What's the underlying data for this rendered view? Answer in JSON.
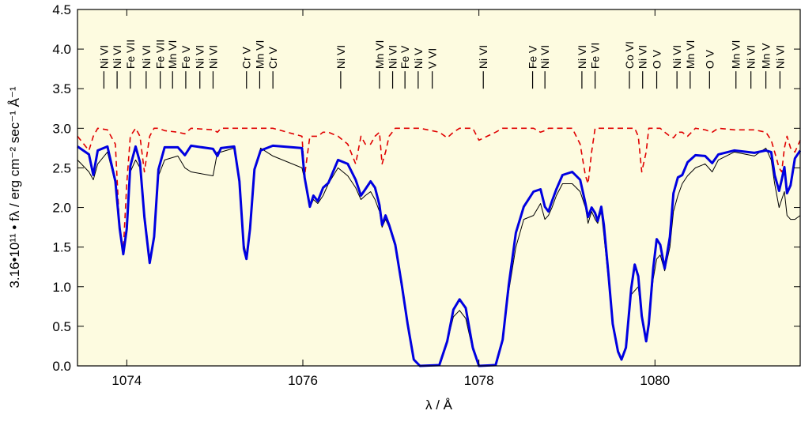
{
  "chart_data": {
    "type": "line",
    "x_label": "λ / Å",
    "y_label": "3.16•10¹¹ • fλ / erg cm⁻² sec⁻¹ Å⁻¹",
    "xlim": [
      1073.44,
      1081.65
    ],
    "ylim": [
      0,
      4.5
    ],
    "xticks": [
      1074,
      1076,
      1078,
      1080
    ],
    "yticks": [
      {
        "value": 0,
        "label": "0.0"
      },
      0.5,
      {
        "value": 1,
        "label": "1.0"
      },
      1.5,
      {
        "value": 2,
        "label": "2.0"
      },
      2.5,
      {
        "value": 3,
        "label": "3.0"
      },
      3.5,
      {
        "value": 4,
        "label": "4.0"
      },
      4.5
    ],
    "x": [
      1073.44,
      1073.57,
      1073.62,
      1073.67,
      1073.78,
      1073.87,
      1073.92,
      1073.96,
      1074.0,
      1074.04,
      1074.1,
      1074.15,
      1074.2,
      1074.26,
      1074.31,
      1074.36,
      1074.43,
      1074.58,
      1074.66,
      1074.73,
      1074.98,
      1075.03,
      1075.07,
      1075.22,
      1075.28,
      1075.33,
      1075.36,
      1075.4,
      1075.45,
      1075.52,
      1075.66,
      1075.99,
      1076.02,
      1076.08,
      1076.12,
      1076.17,
      1076.23,
      1076.29,
      1076.4,
      1076.51,
      1076.6,
      1076.66,
      1076.71,
      1076.77,
      1076.82,
      1076.87,
      1076.9,
      1076.94,
      1076.98,
      1077.05,
      1077.12,
      1077.19,
      1077.26,
      1077.33,
      1077.55,
      1077.64,
      1077.71,
      1077.78,
      1077.85,
      1077.93,
      1078.0,
      1078.19,
      1078.27,
      1078.34,
      1078.42,
      1078.51,
      1078.62,
      1078.7,
      1078.75,
      1078.79,
      1078.83,
      1078.88,
      1078.95,
      1079.06,
      1079.15,
      1079.21,
      1079.24,
      1079.28,
      1079.32,
      1079.35,
      1079.39,
      1079.42,
      1079.47,
      1079.52,
      1079.58,
      1079.62,
      1079.67,
      1079.73,
      1079.77,
      1079.81,
      1079.85,
      1079.9,
      1079.93,
      1079.98,
      1080.02,
      1080.06,
      1080.11,
      1080.17,
      1080.21,
      1080.26,
      1080.31,
      1080.37,
      1080.46,
      1080.57,
      1080.65,
      1080.72,
      1080.9,
      1081.13,
      1081.26,
      1081.32,
      1081.36,
      1081.41,
      1081.44,
      1081.47,
      1081.5,
      1081.54,
      1081.59,
      1081.65
    ],
    "series": [
      {
        "color": "#000000",
        "width": 1,
        "dash": false,
        "values": [
          2.6,
          2.45,
          2.35,
          2.55,
          2.7,
          2.3,
          1.75,
          1.45,
          1.7,
          2.45,
          2.6,
          2.5,
          1.95,
          1.35,
          1.6,
          2.4,
          2.6,
          2.65,
          2.5,
          2.45,
          2.4,
          2.7,
          2.7,
          2.75,
          2.3,
          1.55,
          1.38,
          1.7,
          2.45,
          2.75,
          2.65,
          2.5,
          2.35,
          2.0,
          2.1,
          2.05,
          2.15,
          2.3,
          2.5,
          2.4,
          2.25,
          2.1,
          2.15,
          2.2,
          2.1,
          1.95,
          1.75,
          1.85,
          1.75,
          1.5,
          1.0,
          0.5,
          0.08,
          0,
          0.01,
          0.3,
          0.62,
          0.7,
          0.6,
          0.2,
          0,
          0.02,
          0.35,
          0.95,
          1.5,
          1.85,
          1.9,
          2.05,
          1.85,
          1.9,
          2.0,
          2.15,
          2.3,
          2.3,
          2.2,
          2.0,
          1.8,
          1.95,
          1.85,
          1.8,
          1.95,
          1.65,
          1.1,
          0.5,
          0.2,
          0.1,
          0.25,
          0.9,
          0.95,
          1.0,
          0.6,
          0.35,
          0.55,
          1.1,
          1.35,
          1.4,
          1.2,
          1.5,
          1.95,
          2.15,
          2.3,
          2.4,
          2.5,
          2.55,
          2.45,
          2.6,
          2.7,
          2.65,
          2.75,
          2.6,
          2.3,
          2.0,
          2.1,
          2.2,
          1.9,
          1.85,
          1.85,
          1.9
        ]
      },
      {
        "color": "#e00000",
        "width": 1.6,
        "dash": true,
        "values": [
          2.9,
          2.72,
          2.9,
          3.0,
          2.98,
          2.8,
          1.7,
          1.45,
          2.3,
          2.9,
          3.0,
          2.9,
          2.45,
          2.9,
          3.0,
          3.0,
          2.97,
          2.95,
          2.93,
          3.0,
          2.98,
          2.95,
          3.0,
          3.0,
          3.0,
          3.0,
          3.0,
          3.0,
          3.0,
          3.0,
          3.0,
          2.9,
          2.4,
          2.9,
          2.9,
          2.9,
          2.95,
          2.95,
          2.9,
          2.8,
          2.55,
          2.9,
          2.8,
          2.8,
          2.9,
          2.95,
          2.55,
          2.7,
          2.9,
          3.0,
          3.0,
          3.0,
          3.0,
          3.0,
          2.95,
          2.88,
          2.95,
          3.0,
          3.0,
          3.0,
          2.85,
          2.95,
          3.0,
          3.0,
          3.0,
          3.0,
          3.0,
          2.95,
          2.97,
          3.0,
          3.0,
          3.0,
          3.0,
          3.0,
          2.8,
          2.4,
          2.3,
          2.7,
          3.0,
          3.0,
          3.0,
          3.0,
          3.0,
          3.0,
          3.0,
          3.0,
          3.0,
          3.0,
          3.0,
          2.9,
          2.45,
          2.7,
          3.0,
          3.0,
          3.0,
          3.0,
          2.95,
          2.9,
          2.88,
          2.95,
          2.95,
          2.9,
          3.0,
          2.98,
          2.95,
          3.0,
          2.98,
          2.98,
          2.95,
          2.85,
          2.7,
          2.5,
          2.45,
          2.75,
          2.9,
          2.75,
          2.7,
          2.85
        ]
      },
      {
        "color": "#0000e0",
        "width": 3,
        "dash": false,
        "values": [
          2.77,
          2.67,
          2.41,
          2.72,
          2.77,
          2.33,
          1.73,
          1.41,
          1.73,
          2.52,
          2.77,
          2.57,
          1.88,
          1.3,
          1.63,
          2.48,
          2.76,
          2.76,
          2.66,
          2.78,
          2.74,
          2.65,
          2.75,
          2.77,
          2.33,
          1.48,
          1.35,
          1.73,
          2.48,
          2.72,
          2.78,
          2.75,
          2.38,
          2.01,
          2.15,
          2.08,
          2.25,
          2.31,
          2.6,
          2.55,
          2.35,
          2.15,
          2.23,
          2.33,
          2.25,
          2.03,
          1.78,
          1.9,
          1.78,
          1.53,
          1.05,
          0.53,
          0.08,
          0,
          0.01,
          0.31,
          0.71,
          0.84,
          0.73,
          0.23,
          0,
          0.01,
          0.33,
          1.03,
          1.68,
          2.01,
          2.2,
          2.23,
          2.01,
          1.95,
          2.08,
          2.23,
          2.41,
          2.45,
          2.35,
          2.05,
          1.88,
          2.0,
          1.93,
          1.83,
          2.01,
          1.78,
          1.18,
          0.53,
          0.18,
          0.08,
          0.23,
          0.98,
          1.28,
          1.13,
          0.63,
          0.31,
          0.53,
          1.23,
          1.6,
          1.53,
          1.23,
          1.63,
          2.18,
          2.38,
          2.41,
          2.57,
          2.66,
          2.65,
          2.56,
          2.67,
          2.72,
          2.69,
          2.72,
          2.7,
          2.41,
          2.21,
          2.35,
          2.51,
          2.18,
          2.28,
          2.62,
          2.72
        ]
      }
    ],
    "line_ids": [
      {
        "label": "Ni VI",
        "x": 1073.74
      },
      {
        "label": "Ni VI",
        "x": 1073.89
      },
      {
        "label": "Fe VII",
        "x": 1074.04
      },
      {
        "label": "Ni VI",
        "x": 1074.22
      },
      {
        "label": "Fe VII",
        "x": 1074.38
      },
      {
        "label": "Mn VI",
        "x": 1074.52
      },
      {
        "label": "Fe V",
        "x": 1074.67
      },
      {
        "label": "Ni VI",
        "x": 1074.83
      },
      {
        "label": "Ni VI",
        "x": 1074.98
      },
      {
        "label": "Cr V",
        "x": 1075.36
      },
      {
        "label": "Mn VI",
        "x": 1075.51
      },
      {
        "label": "Cr V",
        "x": 1075.66
      },
      {
        "label": "Ni VI",
        "x": 1076.43
      },
      {
        "label": "Mn VI",
        "x": 1076.87
      },
      {
        "label": "Ni VI",
        "x": 1077.02
      },
      {
        "label": "Fe V",
        "x": 1077.16
      },
      {
        "label": "Ni V",
        "x": 1077.31
      },
      {
        "label": "V VI",
        "x": 1077.47
      },
      {
        "label": "Ni VI",
        "x": 1078.05
      },
      {
        "label": "Fe V",
        "x": 1078.61
      },
      {
        "label": "Ni VI",
        "x": 1078.75
      },
      {
        "label": "Ni VI",
        "x": 1079.17
      },
      {
        "label": "Fe VI",
        "x": 1079.32
      },
      {
        "label": "Co VI",
        "x": 1079.71
      },
      {
        "label": "Ni VI",
        "x": 1079.86
      },
      {
        "label": "O V",
        "x": 1080.02
      },
      {
        "label": "Ni VI",
        "x": 1080.25
      },
      {
        "label": "Mn VI",
        "x": 1080.4
      },
      {
        "label": "O V",
        "x": 1080.62
      },
      {
        "label": "Mn VI",
        "x": 1080.92
      },
      {
        "label": "Ni VI",
        "x": 1081.09
      },
      {
        "label": "Mn V",
        "x": 1081.26
      },
      {
        "label": "Ni VI",
        "x": 1081.42
      }
    ]
  }
}
